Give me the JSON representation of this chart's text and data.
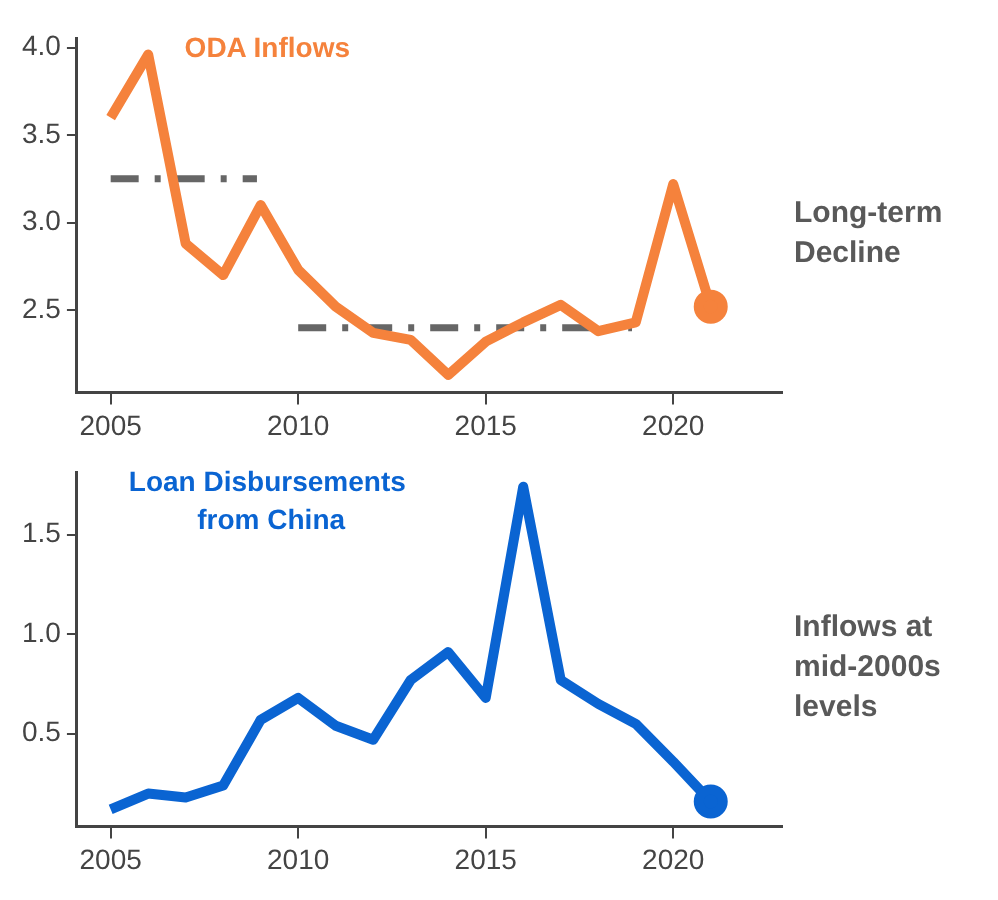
{
  "chart_data": [
    {
      "type": "line",
      "title": "ODA Inflows",
      "xlim": [
        2004.1,
        2022.9
      ],
      "xticks": [
        2005,
        2010,
        2015,
        2020
      ],
      "ylim": [
        2.03,
        4.05
      ],
      "yticks": [
        {
          "value": 2.5,
          "label": "2.5"
        },
        {
          "value": 3.0,
          "label": "3.0"
        },
        {
          "value": 3.5,
          "label": "3.5"
        },
        {
          "value": 4.0,
          "label": "4.0"
        }
      ],
      "grid": false,
      "legend": false,
      "annotations": [
        "Long-term Decline"
      ],
      "series": [
        {
          "color": "#f5823c",
          "x": [
            2005,
            2006,
            2007,
            2008,
            2009,
            2010,
            2011,
            2012,
            2013,
            2014,
            2015,
            2016,
            2017,
            2018,
            2019,
            2020,
            2021
          ],
          "values": [
            3.6,
            3.96,
            2.88,
            2.7,
            3.1,
            2.73,
            2.52,
            2.37,
            2.33,
            2.13,
            2.32,
            2.43,
            2.53,
            2.38,
            2.43,
            3.22,
            2.52
          ]
        },
        {
          "color": "#666666",
          "line_style": "dashed",
          "x": [
            2005,
            2008.9
          ],
          "values": [
            3.25,
            3.25
          ]
        },
        {
          "color": "#666666",
          "line_style": "dashed",
          "x": [
            2010,
            2018.9
          ],
          "values": [
            2.4,
            2.4
          ]
        }
      ]
    },
    {
      "type": "line",
      "title": "Loan Disbursements\n from China",
      "xlim": [
        2004.1,
        2022.9
      ],
      "xticks": [
        2005,
        2010,
        2015,
        2020
      ],
      "ylim": [
        0.035,
        1.81
      ],
      "yticks": [
        0.5,
        {
          "value": 1.0,
          "label": "1.0"
        },
        1.5
      ],
      "grid": false,
      "legend": false,
      "annotations": [
        "Inflows at mid-2000s levels"
      ],
      "series": [
        {
          "color": "#0a64d2",
          "x": [
            2005,
            2006,
            2007,
            2008,
            2009,
            2010,
            2011,
            2012,
            2013,
            2014,
            2015,
            2016,
            2017,
            2018,
            2019,
            2020,
            2021
          ],
          "values": [
            0.12,
            0.2,
            0.18,
            0.24,
            0.57,
            0.68,
            0.54,
            0.47,
            0.77,
            0.91,
            0.68,
            1.74,
            0.77,
            0.65,
            0.55,
            0.36,
            0.16
          ]
        }
      ]
    }
  ]
}
